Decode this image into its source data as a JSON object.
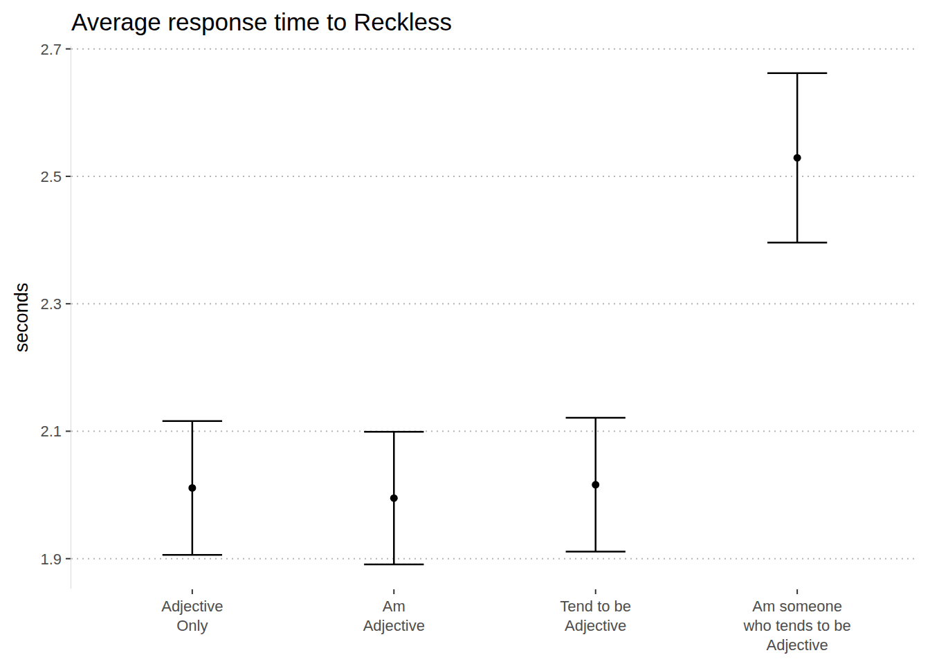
{
  "chart_data": {
    "type": "point",
    "title": "Average response time to Reckless",
    "y_label": "seconds",
    "categories": [
      "Adjective\nOnly",
      "Am\nAdjective",
      "Tend to be\nAdjective",
      "Am someone\nwho tends to be\nAdjective"
    ],
    "values": [
      2.011,
      1.995,
      2.016,
      2.529
    ],
    "errors": [
      0.105,
      0.104,
      0.105,
      0.133
    ],
    "color": "#000000",
    "marker": "circle",
    "ylim": [
      1.853,
      2.704
    ],
    "yticks": [
      1.9,
      2.1,
      2.3,
      2.5,
      2.7
    ],
    "grid": true
  }
}
